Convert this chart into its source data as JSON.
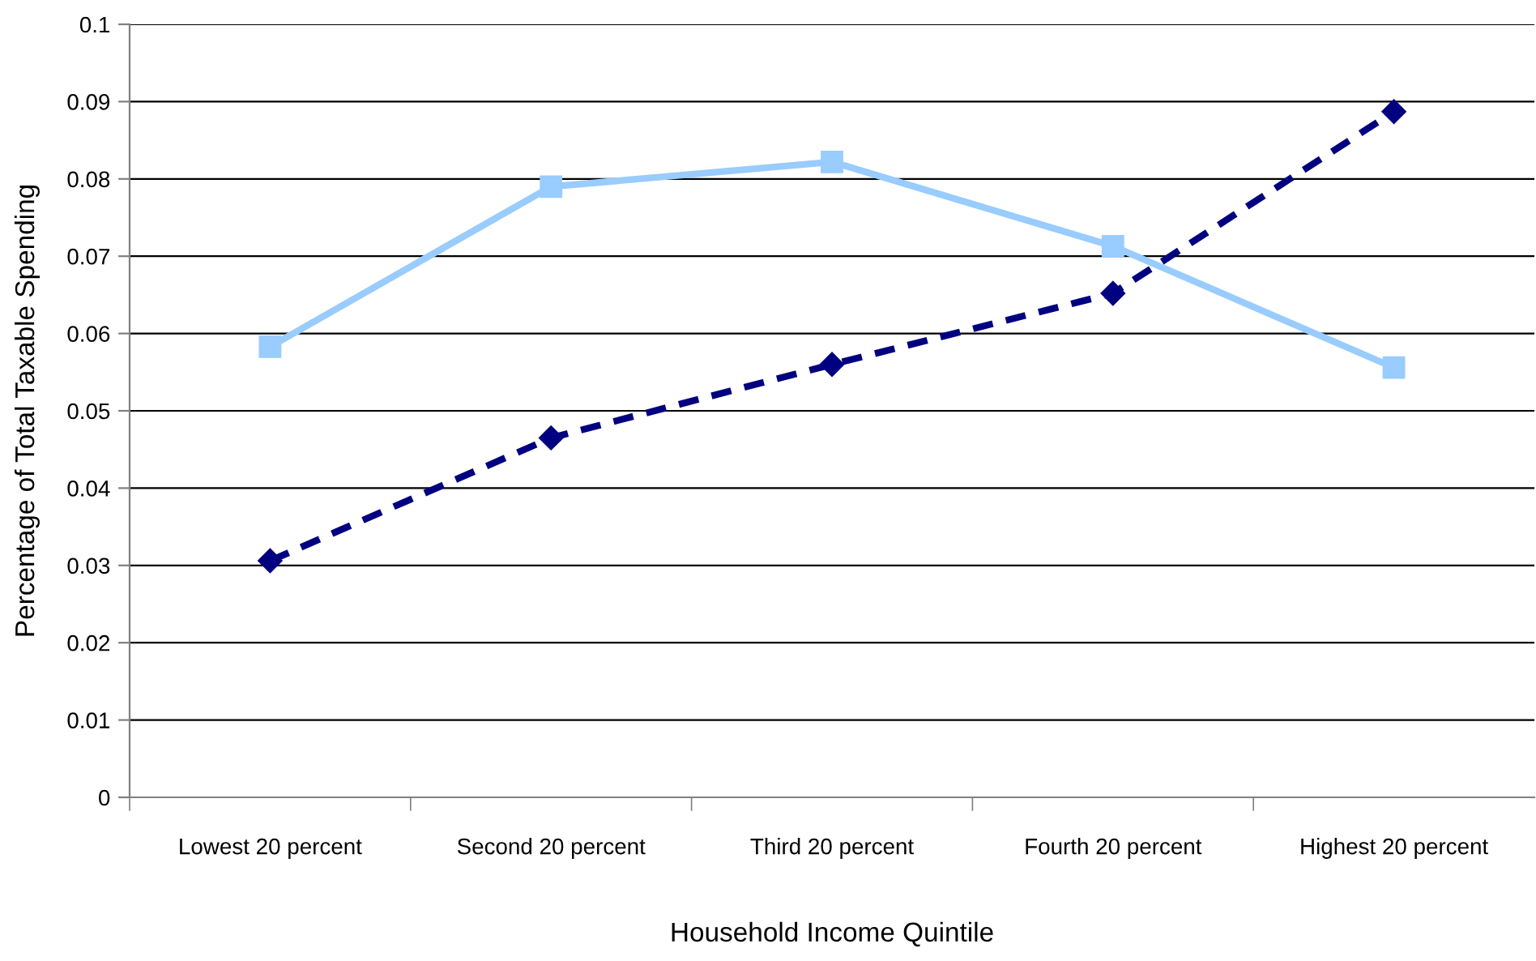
{
  "chart_data": {
    "type": "line",
    "xlabel": "Household Income Quintile",
    "ylabel": "Percentage of Total Taxable Spending",
    "categories": [
      "Lowest 20 percent",
      "Second 20 percent",
      "Third 20 percent",
      "Fourth 20 percent",
      "Highest 20 percent"
    ],
    "series": [
      {
        "color": "#99ccff",
        "marker": "square",
        "line_style": "solid",
        "values": [
          0.0583,
          0.079,
          0.0822,
          0.0713,
          0.0556
        ]
      },
      {
        "color": "#000080",
        "marker": "diamond",
        "line_style": "dashed",
        "values": [
          0.0306,
          0.0465,
          0.056,
          0.0652,
          0.0887
        ]
      }
    ],
    "ylim": [
      0,
      0.1
    ],
    "yticks": [
      0,
      0.01,
      0.02,
      0.03,
      0.04,
      0.05,
      0.06,
      0.07,
      0.08,
      0.09,
      0.1
    ],
    "grid": "y"
  }
}
